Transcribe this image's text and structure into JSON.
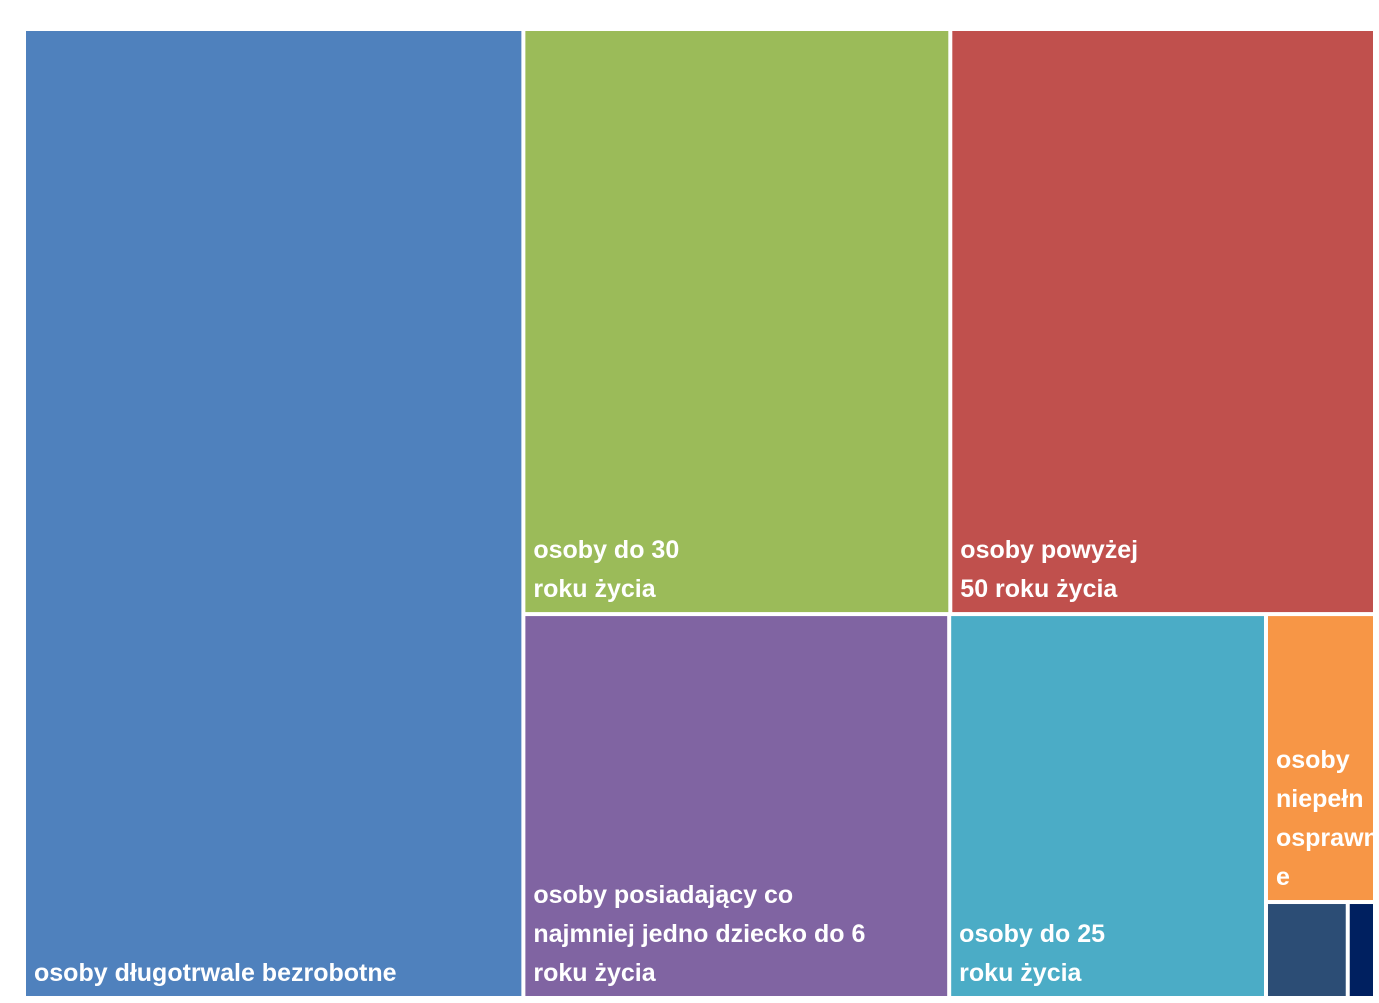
{
  "chart_data": {
    "type": "treemap",
    "title": "",
    "items": [
      {
        "label": "osoby długotrwale bezrobotne",
        "lines": [
          "osoby długotrwale bezrobotne"
        ],
        "value": 37.0,
        "color": "#4f81bd"
      },
      {
        "label": "osoby do 30 roku życia",
        "lines": [
          "osoby do 30",
          "roku życia"
        ],
        "value": 19.1,
        "color": "#9bbb59"
      },
      {
        "label": "osoby powyżej 50 roku życia",
        "lines": [
          "osoby powyżej",
          "50 roku życia"
        ],
        "value": 19.0,
        "color": "#c0504d"
      },
      {
        "label": "osoby posiadający co najmniej jedno dziecko do 6 roku życia",
        "lines": [
          "osoby posiadający co",
          "najmniej jedno dziecko do 6",
          "roku życia"
        ],
        "value": 12.5,
        "color": "#8064a2"
      },
      {
        "label": "osoby do 25 roku życia",
        "lines": [
          "osoby do 25",
          "roku życia"
        ],
        "value": 9.3,
        "color": "#4bacc6"
      },
      {
        "label": "osoby niepełnosprawne",
        "lines": [
          "osoby",
          "niepełn",
          "osprawn",
          "e"
        ],
        "value": 2.4,
        "color": "#f79646"
      },
      {
        "label": "",
        "lines": [],
        "value": 0.6,
        "color": "#2c4d75"
      },
      {
        "label": "",
        "lines": [],
        "value": 0.2,
        "color": "#002060"
      }
    ]
  }
}
